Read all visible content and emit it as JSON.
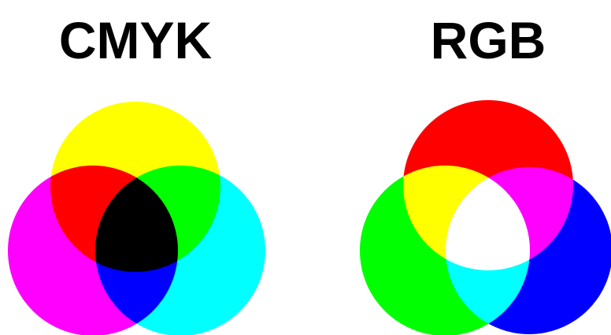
{
  "diagrams": [
    {
      "title": "CMYK"
    },
    {
      "title": "RGB"
    }
  ]
}
